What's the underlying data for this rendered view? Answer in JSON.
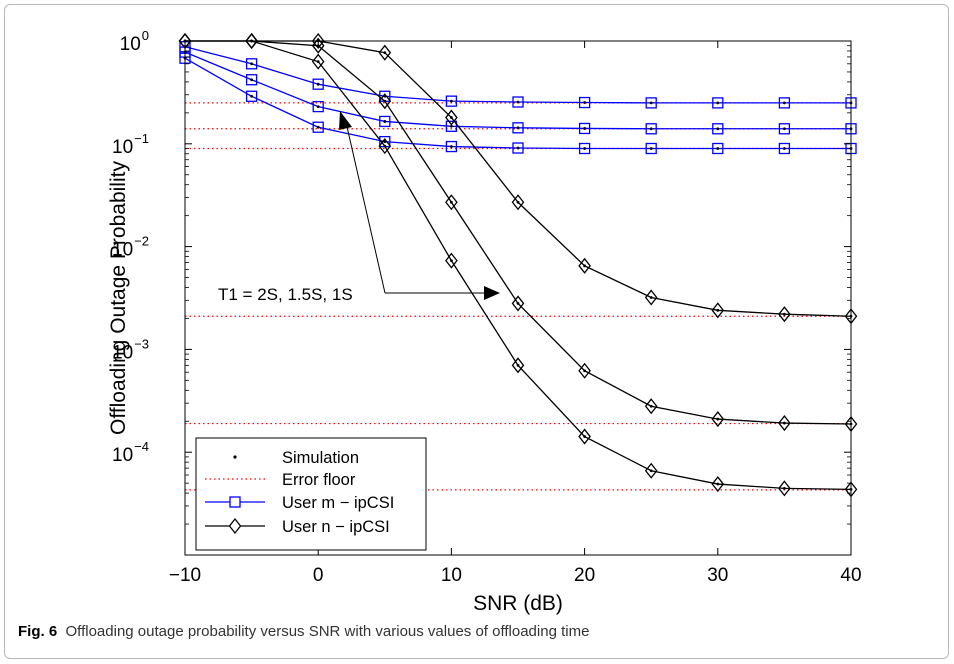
{
  "caption": {
    "label": "Fig. 6",
    "text": "Offloading outage probability versus SNR with various values of offloading time"
  },
  "chart_data": {
    "type": "line",
    "xlabel": "SNR (dB)",
    "ylabel": "Offloading Outage Probability",
    "xlim": [
      -10,
      40
    ],
    "ylim_log10": [
      -5,
      0
    ],
    "yscale": "log",
    "x_ticks": [
      "−10",
      "0",
      "10",
      "20",
      "30",
      "40"
    ],
    "x_tick_values": [
      -10,
      0,
      10,
      20,
      30,
      40
    ],
    "y_tick_exponents": [
      0,
      -1,
      -2,
      -3,
      -4
    ],
    "grid": false,
    "legend": {
      "placement": "bottom-left",
      "entries": [
        {
          "label": "Simulation",
          "style": "dot"
        },
        {
          "label": "Error floor",
          "style": "dotted-red"
        },
        {
          "label": "User m − ipCSI",
          "style": "blue-square"
        },
        {
          "label": "User n − ipCSI",
          "style": "black-diamond"
        }
      ]
    },
    "annotation": "T1 = 2S, 1.5S, 1S",
    "colors": {
      "user_m": "#0000ff",
      "user_n": "#000000",
      "floor": "#ff0000"
    },
    "x": [
      -10,
      -5,
      0,
      5,
      10,
      15,
      20,
      25,
      30,
      35,
      40
    ],
    "series": [
      {
        "group": "user_m",
        "values": [
          0.88,
          0.6,
          0.38,
          0.29,
          0.26,
          0.255,
          0.252,
          0.25,
          0.25,
          0.25,
          0.25
        ]
      },
      {
        "group": "user_m",
        "values": [
          0.78,
          0.42,
          0.23,
          0.165,
          0.148,
          0.143,
          0.141,
          0.14,
          0.14,
          0.14,
          0.14
        ]
      },
      {
        "group": "user_m",
        "values": [
          0.68,
          0.29,
          0.145,
          0.105,
          0.094,
          0.091,
          0.09,
          0.09,
          0.09,
          0.09,
          0.09
        ]
      },
      {
        "group": "user_n",
        "values": [
          1.0,
          1.0,
          1.0,
          0.77,
          0.18,
          0.027,
          0.0065,
          0.0032,
          0.0024,
          0.0022,
          0.0021
        ]
      },
      {
        "group": "user_n",
        "values": [
          1.0,
          1.0,
          0.9,
          0.26,
          0.027,
          0.0028,
          0.00062,
          0.00028,
          0.00021,
          0.000192,
          0.000188
        ]
      },
      {
        "group": "user_n",
        "values": [
          1.0,
          1.0,
          0.63,
          0.095,
          0.0073,
          0.0007,
          0.000142,
          6.6e-05,
          4.9e-05,
          4.45e-05,
          4.35e-05
        ]
      }
    ],
    "error_floors": [
      0.25,
      0.14,
      0.09,
      0.0021,
      0.00019,
      4.3e-05
    ]
  }
}
